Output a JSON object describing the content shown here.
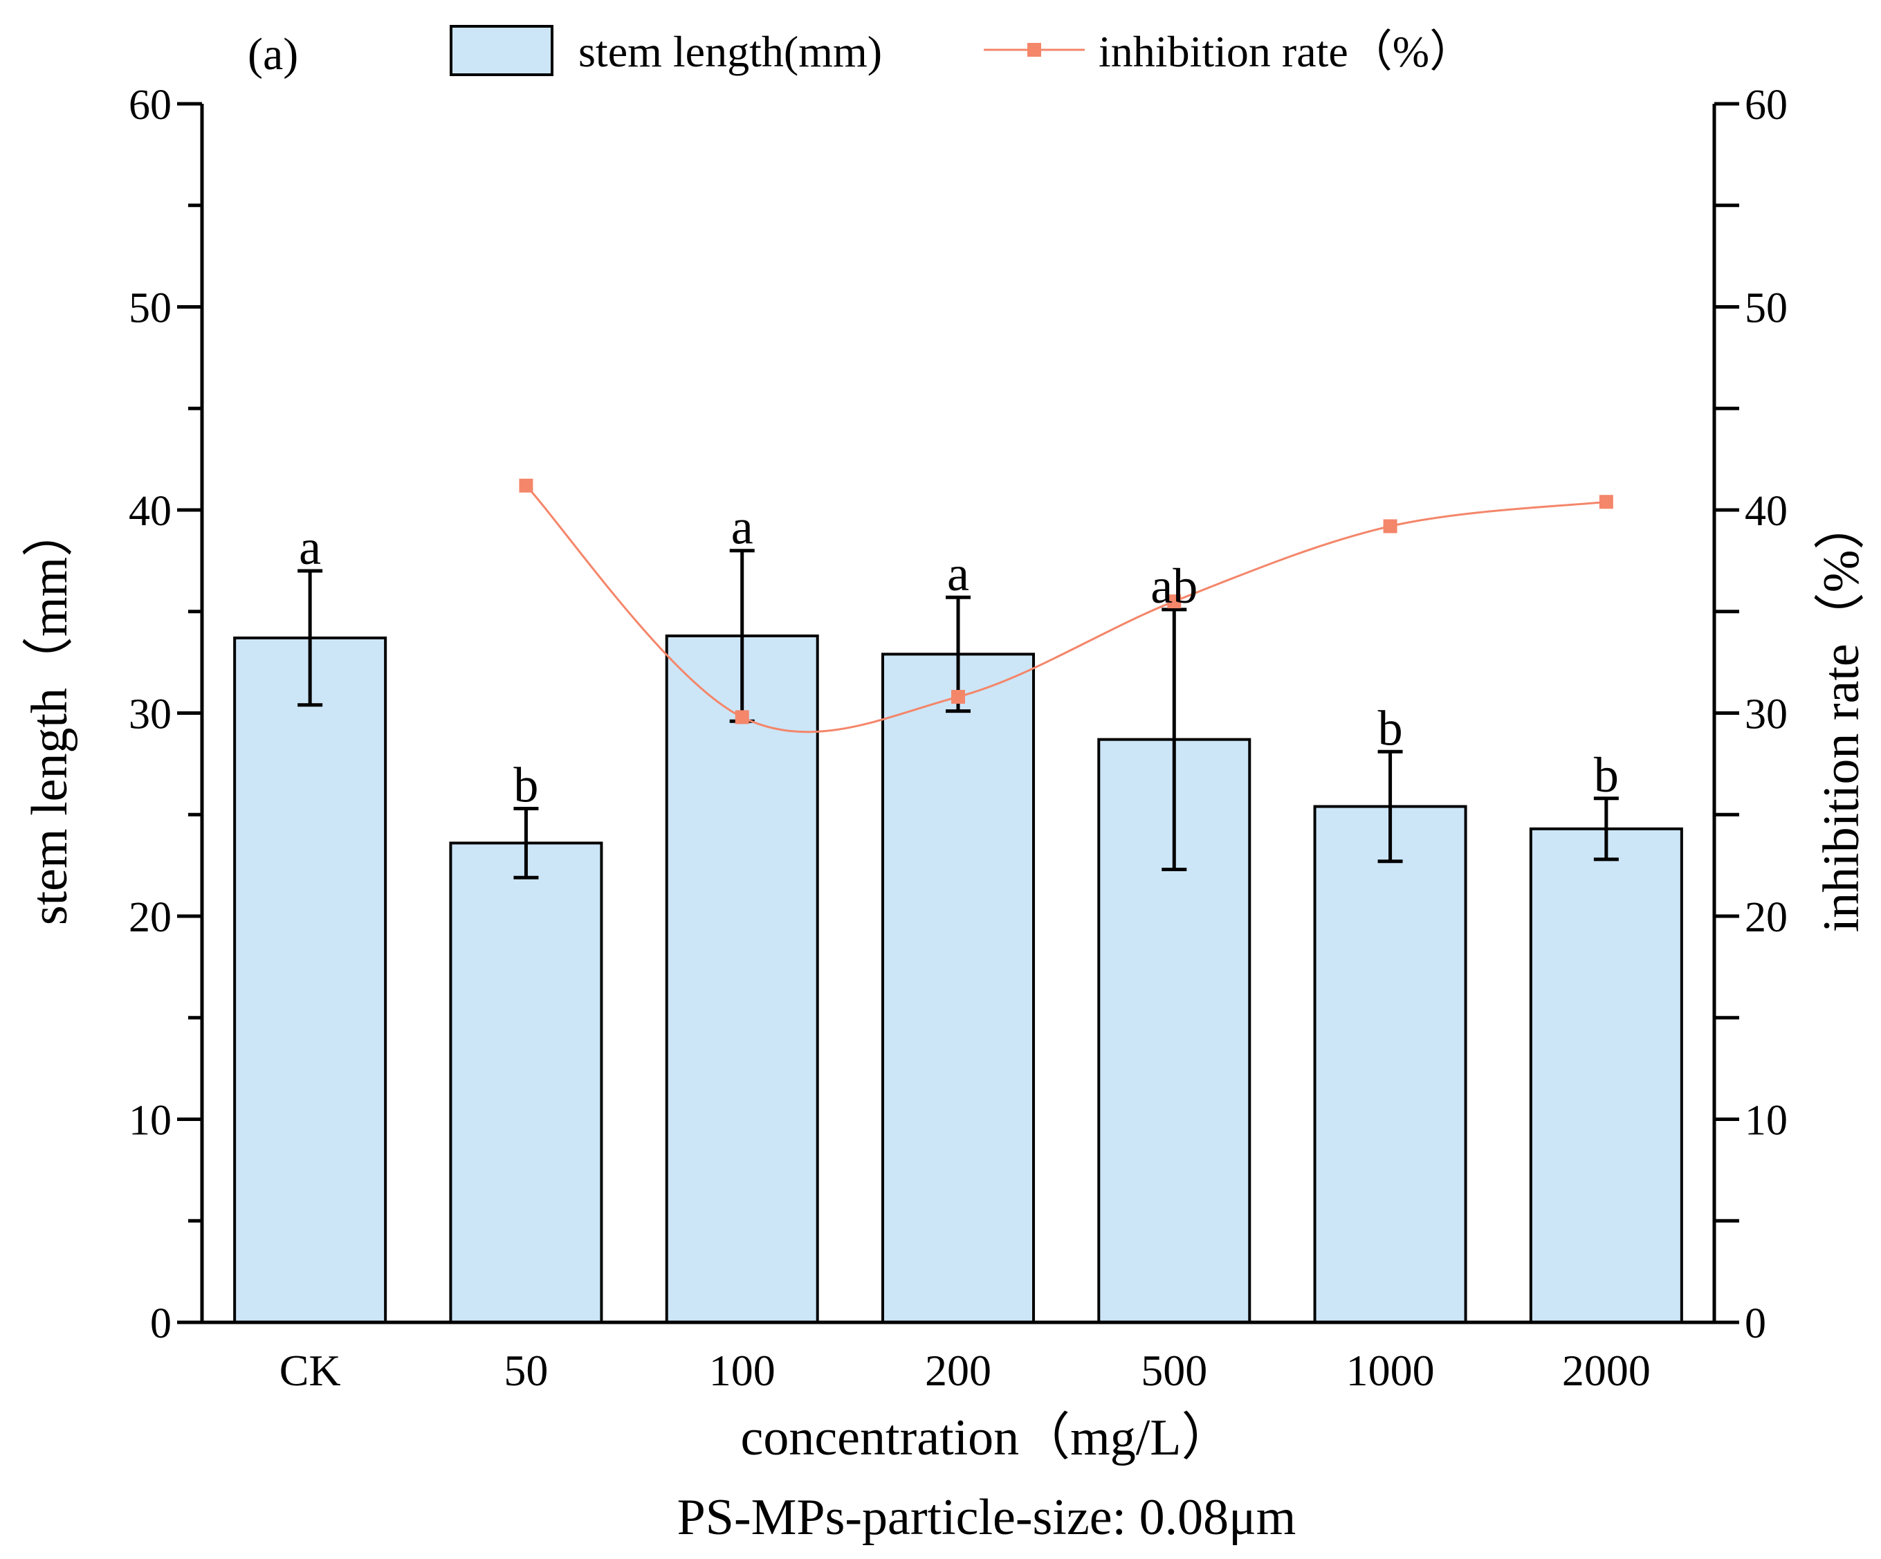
{
  "chart_data": {
    "type": "bar",
    "panel_label": "(a)",
    "categories": [
      "CK",
      "50",
      "100",
      "200",
      "500",
      "1000",
      "2000"
    ],
    "bar_series": {
      "name": "stem length(mm)",
      "values": [
        33.7,
        23.6,
        33.8,
        32.9,
        28.7,
        25.4,
        24.3
      ],
      "error": [
        3.3,
        1.7,
        4.2,
        2.8,
        6.4,
        2.7,
        1.5
      ],
      "significance": [
        "a",
        "b",
        "a",
        "a",
        "ab",
        "b",
        "b"
      ],
      "color": "#cce6f8",
      "edge_color": "#000000"
    },
    "line_series": {
      "name": "inhibition rate（%）",
      "categories": [
        "50",
        "100",
        "200",
        "500",
        "1000",
        "2000"
      ],
      "values": [
        41.2,
        29.8,
        30.8,
        35.5,
        39.2,
        40.4
      ],
      "color": "#f4866a",
      "smooth": true,
      "marker": "square"
    },
    "xlabel": "concentration（mg/L）",
    "ylabel_left": "stem length（mm）",
    "ylabel_right": "inhibition rate（%）",
    "ylim_left": [
      0,
      60
    ],
    "ylim_right": [
      0,
      60
    ],
    "yticks_left": [
      0,
      10,
      20,
      30,
      40,
      50,
      60
    ],
    "yticks_right": [
      0,
      10,
      20,
      30,
      40,
      50,
      60
    ],
    "caption": "PS-MPs-particle-size: 0.08μm",
    "grid": false,
    "legend_position": "top"
  }
}
